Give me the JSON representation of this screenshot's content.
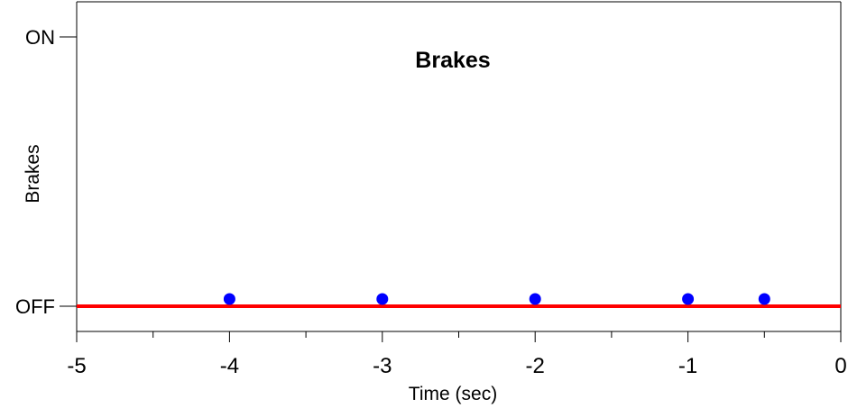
{
  "chart_data": {
    "type": "line",
    "title": "Brakes",
    "xlabel": "Time (sec)",
    "ylabel": "Brakes",
    "xlim": [
      -5,
      0
    ],
    "ylim": [
      "OFF",
      "ON"
    ],
    "x_ticks": [
      {
        "value": -5,
        "label": "-5"
      },
      {
        "value": -4,
        "label": "-4"
      },
      {
        "value": -3,
        "label": "-3"
      },
      {
        "value": -2,
        "label": "-2"
      },
      {
        "value": -1,
        "label": "-1"
      },
      {
        "value": 0,
        "label": "0"
      }
    ],
    "x_minor_ticks": [
      -4.5,
      -3.5,
      -2.5,
      -1.5,
      -0.5
    ],
    "y_ticks": [
      {
        "value": 0,
        "label": "OFF"
      },
      {
        "value": 1,
        "label": "ON"
      }
    ],
    "grid": false,
    "series": [
      {
        "kind": "line",
        "color": "#ff0000",
        "x": [
          -5,
          0
        ],
        "y": [
          0,
          0
        ]
      },
      {
        "kind": "scatter",
        "color": "#0000ff",
        "x": [
          -4,
          -3,
          -2,
          -1,
          -0.5
        ],
        "y": [
          0,
          0,
          0,
          0,
          0
        ]
      }
    ]
  }
}
